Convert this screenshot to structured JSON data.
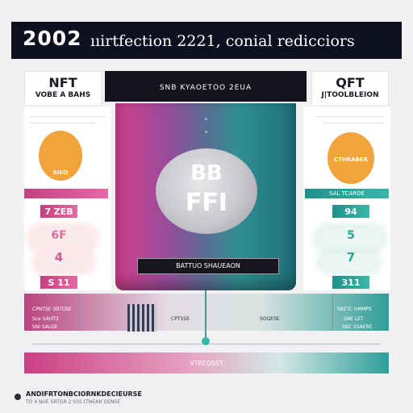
{
  "banner": {
    "year": "2002",
    "text": "ııirtfection 2221, conial redicciors"
  },
  "left": {
    "head_big": "NFT",
    "head_small": "VOBE A BAHS",
    "circle_label": "SIEO",
    "strip_label": "",
    "num_top": "7 ZEB",
    "num_mid": "6F",
    "num_mid2": "4",
    "num_bottom": "S 11",
    "bottom_texts": [
      "CPNTSE SBTCBE",
      "Sce SAHT3",
      "SNI SALOE"
    ]
  },
  "right": {
    "head_big": "QFT",
    "head_small": "J|TOOLBLEION",
    "circle_label": "CTHRABER",
    "strip_label": "SAL TCAROE",
    "num_top": "94",
    "num_mid": "5",
    "num_mid2": "7",
    "num_bottom": "311",
    "bottom_texts": [
      "SKETC HMMPE",
      "SAE LET",
      "SBC SSAERE"
    ]
  },
  "center": {
    "head": "SNB KYAOETOO 2EUA",
    "orb_top": "BB",
    "orb_bottom": "FFI",
    "label": "BATTUO SHAUEAON",
    "band_mid_texts": [
      "CPTSSE",
      "SOGESE"
    ],
    "bottom_label": "VTPEOSST"
  },
  "footer": {
    "text": "ANDIFRTONBCIORNKDECIEURSE",
    "sub": "TO 4 NUE SRTGR 2 SSS LTNEAN OENSE"
  },
  "colors": {
    "accent_pink": "#d23f8a",
    "accent_teal": "#2f8f93",
    "accent_orange": "#f3a33b",
    "dark": "#12131d"
  }
}
